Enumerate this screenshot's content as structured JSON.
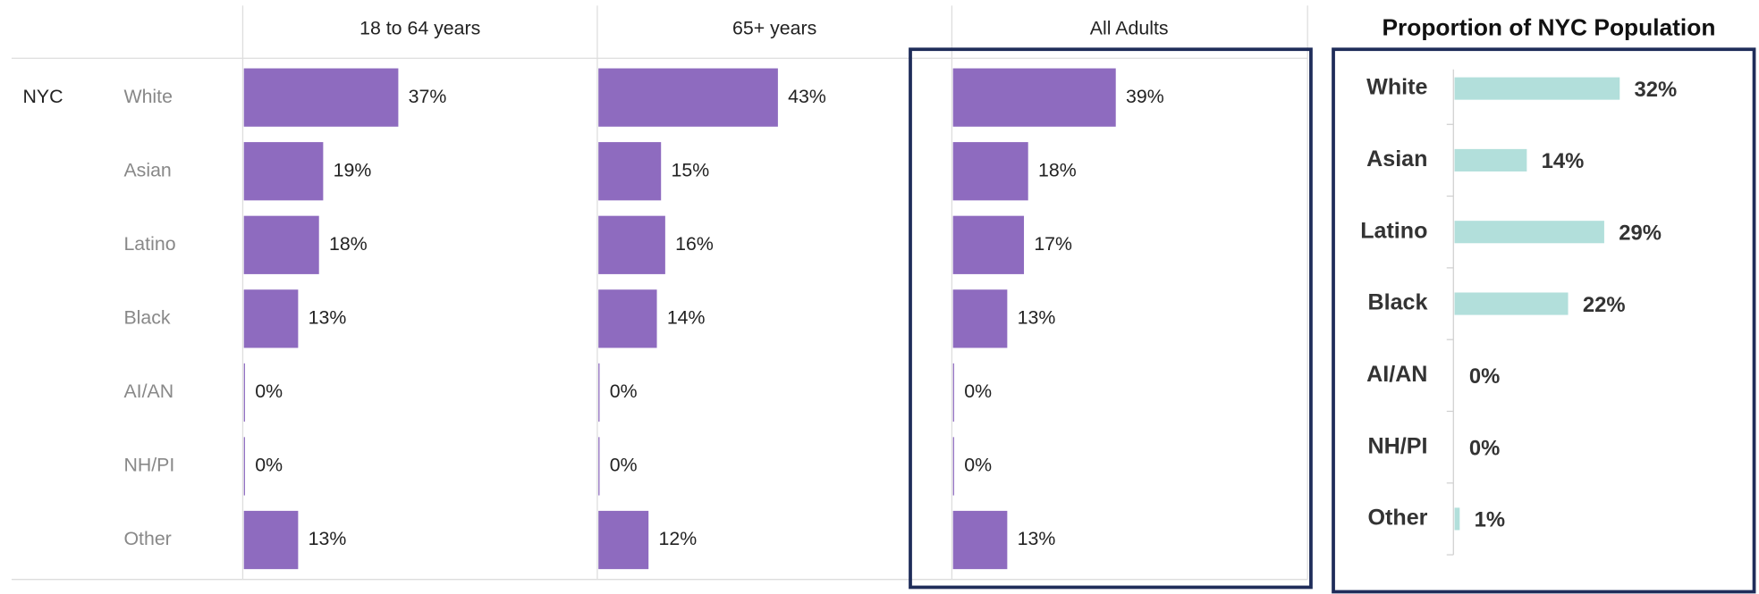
{
  "chart_data": [
    {
      "type": "bar",
      "orientation": "horizontal",
      "group": "NYC",
      "categories": [
        "White",
        "Asian",
        "Latino",
        "Black",
        "AI/AN",
        "NH/PI",
        "Other"
      ],
      "color": "#8e6bbf",
      "series": [
        {
          "name": "18 to 64 years",
          "values": [
            37,
            19,
            18,
            13,
            0,
            0,
            13
          ],
          "value_labels": [
            "37%",
            "19%",
            "18%",
            "13%",
            "0%",
            "0%",
            "13%"
          ]
        },
        {
          "name": "65+ years",
          "values": [
            43,
            15,
            16,
            14,
            0,
            0,
            12
          ],
          "value_labels": [
            "43%",
            "15%",
            "16%",
            "14%",
            "0%",
            "0%",
            "12%"
          ]
        },
        {
          "name": "All Adults",
          "values": [
            39,
            18,
            17,
            13,
            0,
            0,
            13
          ],
          "value_labels": [
            "39%",
            "18%",
            "17%",
            "13%",
            "0%",
            "0%",
            "13%"
          ]
        }
      ]
    },
    {
      "type": "bar",
      "orientation": "horizontal",
      "title": "Proportion of NYC Population",
      "categories": [
        "White",
        "Asian",
        "Latino",
        "Black",
        "AI/AN",
        "NH/PI",
        "Other"
      ],
      "color": "#b2dfdb",
      "values": [
        32,
        14,
        29,
        22,
        0,
        0,
        1
      ],
      "value_labels": [
        "32%",
        "14%",
        "29%",
        "22%",
        "0%",
        "0%",
        "1%"
      ]
    }
  ]
}
